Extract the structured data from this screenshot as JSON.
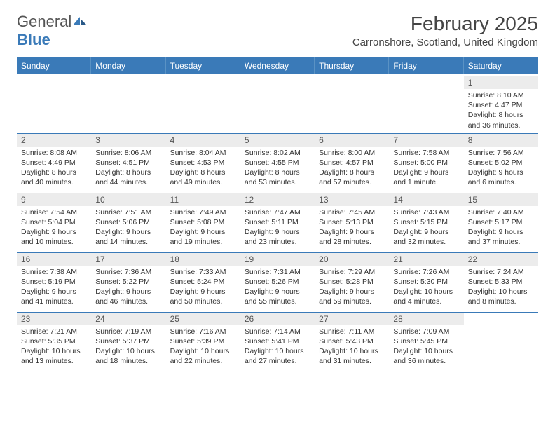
{
  "logo": {
    "word1": "General",
    "word2": "Blue"
  },
  "title": "February 2025",
  "location": "Carronshore, Scotland, United Kingdom",
  "colors": {
    "header_bg": "#3a7ab8",
    "header_border": "#5a92c4",
    "row_divider": "#3a7ab8",
    "daynum_bg": "#ececec",
    "text": "#333333",
    "logo_gray": "#555555",
    "logo_blue": "#3a7ab8"
  },
  "typography": {
    "title_fontsize": 28,
    "location_fontsize": 15,
    "dayheader_fontsize": 12,
    "daynum_fontsize": 12,
    "body_fontsize": 10.5
  },
  "dayNames": [
    "Sunday",
    "Monday",
    "Tuesday",
    "Wednesday",
    "Thursday",
    "Friday",
    "Saturday"
  ],
  "weeks": [
    [
      {
        "n": "",
        "empty": true
      },
      {
        "n": "",
        "empty": true
      },
      {
        "n": "",
        "empty": true
      },
      {
        "n": "",
        "empty": true
      },
      {
        "n": "",
        "empty": true
      },
      {
        "n": "",
        "empty": true
      },
      {
        "n": "1",
        "sunrise": "Sunrise: 8:10 AM",
        "sunset": "Sunset: 4:47 PM",
        "daylight": "Daylight: 8 hours and 36 minutes."
      }
    ],
    [
      {
        "n": "2",
        "sunrise": "Sunrise: 8:08 AM",
        "sunset": "Sunset: 4:49 PM",
        "daylight": "Daylight: 8 hours and 40 minutes."
      },
      {
        "n": "3",
        "sunrise": "Sunrise: 8:06 AM",
        "sunset": "Sunset: 4:51 PM",
        "daylight": "Daylight: 8 hours and 44 minutes."
      },
      {
        "n": "4",
        "sunrise": "Sunrise: 8:04 AM",
        "sunset": "Sunset: 4:53 PM",
        "daylight": "Daylight: 8 hours and 49 minutes."
      },
      {
        "n": "5",
        "sunrise": "Sunrise: 8:02 AM",
        "sunset": "Sunset: 4:55 PM",
        "daylight": "Daylight: 8 hours and 53 minutes."
      },
      {
        "n": "6",
        "sunrise": "Sunrise: 8:00 AM",
        "sunset": "Sunset: 4:57 PM",
        "daylight": "Daylight: 8 hours and 57 minutes."
      },
      {
        "n": "7",
        "sunrise": "Sunrise: 7:58 AM",
        "sunset": "Sunset: 5:00 PM",
        "daylight": "Daylight: 9 hours and 1 minute."
      },
      {
        "n": "8",
        "sunrise": "Sunrise: 7:56 AM",
        "sunset": "Sunset: 5:02 PM",
        "daylight": "Daylight: 9 hours and 6 minutes."
      }
    ],
    [
      {
        "n": "9",
        "sunrise": "Sunrise: 7:54 AM",
        "sunset": "Sunset: 5:04 PM",
        "daylight": "Daylight: 9 hours and 10 minutes."
      },
      {
        "n": "10",
        "sunrise": "Sunrise: 7:51 AM",
        "sunset": "Sunset: 5:06 PM",
        "daylight": "Daylight: 9 hours and 14 minutes."
      },
      {
        "n": "11",
        "sunrise": "Sunrise: 7:49 AM",
        "sunset": "Sunset: 5:08 PM",
        "daylight": "Daylight: 9 hours and 19 minutes."
      },
      {
        "n": "12",
        "sunrise": "Sunrise: 7:47 AM",
        "sunset": "Sunset: 5:11 PM",
        "daylight": "Daylight: 9 hours and 23 minutes."
      },
      {
        "n": "13",
        "sunrise": "Sunrise: 7:45 AM",
        "sunset": "Sunset: 5:13 PM",
        "daylight": "Daylight: 9 hours and 28 minutes."
      },
      {
        "n": "14",
        "sunrise": "Sunrise: 7:43 AM",
        "sunset": "Sunset: 5:15 PM",
        "daylight": "Daylight: 9 hours and 32 minutes."
      },
      {
        "n": "15",
        "sunrise": "Sunrise: 7:40 AM",
        "sunset": "Sunset: 5:17 PM",
        "daylight": "Daylight: 9 hours and 37 minutes."
      }
    ],
    [
      {
        "n": "16",
        "sunrise": "Sunrise: 7:38 AM",
        "sunset": "Sunset: 5:19 PM",
        "daylight": "Daylight: 9 hours and 41 minutes."
      },
      {
        "n": "17",
        "sunrise": "Sunrise: 7:36 AM",
        "sunset": "Sunset: 5:22 PM",
        "daylight": "Daylight: 9 hours and 46 minutes."
      },
      {
        "n": "18",
        "sunrise": "Sunrise: 7:33 AM",
        "sunset": "Sunset: 5:24 PM",
        "daylight": "Daylight: 9 hours and 50 minutes."
      },
      {
        "n": "19",
        "sunrise": "Sunrise: 7:31 AM",
        "sunset": "Sunset: 5:26 PM",
        "daylight": "Daylight: 9 hours and 55 minutes."
      },
      {
        "n": "20",
        "sunrise": "Sunrise: 7:29 AM",
        "sunset": "Sunset: 5:28 PM",
        "daylight": "Daylight: 9 hours and 59 minutes."
      },
      {
        "n": "21",
        "sunrise": "Sunrise: 7:26 AM",
        "sunset": "Sunset: 5:30 PM",
        "daylight": "Daylight: 10 hours and 4 minutes."
      },
      {
        "n": "22",
        "sunrise": "Sunrise: 7:24 AM",
        "sunset": "Sunset: 5:33 PM",
        "daylight": "Daylight: 10 hours and 8 minutes."
      }
    ],
    [
      {
        "n": "23",
        "sunrise": "Sunrise: 7:21 AM",
        "sunset": "Sunset: 5:35 PM",
        "daylight": "Daylight: 10 hours and 13 minutes."
      },
      {
        "n": "24",
        "sunrise": "Sunrise: 7:19 AM",
        "sunset": "Sunset: 5:37 PM",
        "daylight": "Daylight: 10 hours and 18 minutes."
      },
      {
        "n": "25",
        "sunrise": "Sunrise: 7:16 AM",
        "sunset": "Sunset: 5:39 PM",
        "daylight": "Daylight: 10 hours and 22 minutes."
      },
      {
        "n": "26",
        "sunrise": "Sunrise: 7:14 AM",
        "sunset": "Sunset: 5:41 PM",
        "daylight": "Daylight: 10 hours and 27 minutes."
      },
      {
        "n": "27",
        "sunrise": "Sunrise: 7:11 AM",
        "sunset": "Sunset: 5:43 PM",
        "daylight": "Daylight: 10 hours and 31 minutes."
      },
      {
        "n": "28",
        "sunrise": "Sunrise: 7:09 AM",
        "sunset": "Sunset: 5:45 PM",
        "daylight": "Daylight: 10 hours and 36 minutes."
      },
      {
        "n": "",
        "empty": true
      }
    ]
  ]
}
